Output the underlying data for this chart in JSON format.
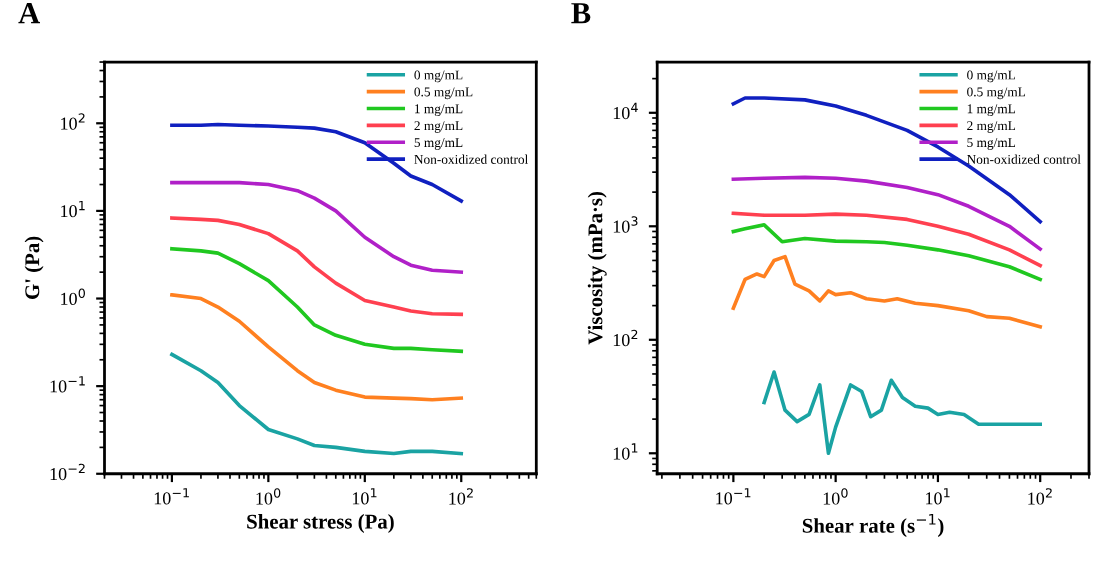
{
  "chart_data": [
    {
      "type": "line",
      "title": "A",
      "xlabel": "Shear stress (Pa)",
      "ylabel": "G' (Pa)",
      "log": "xy",
      "legend": "top right",
      "grid": false,
      "xlim": [
        0.02,
        600
      ],
      "ylim": [
        0.01,
        500
      ],
      "xticks": [
        {
          "value": 0.1,
          "label": "10$^{−1}$"
        },
        {
          "value": 1,
          "label": "10$^{0}$"
        },
        {
          "value": 10,
          "label": "10$^{1}$"
        },
        {
          "value": 100,
          "label": "10$^{2}$"
        }
      ],
      "yticks": [
        {
          "value": 0.01,
          "label": "10$^{−2}$"
        },
        {
          "value": 0.1,
          "label": "10$^{−1}$"
        },
        {
          "value": 1,
          "label": "10$^{0}$"
        },
        {
          "value": 10,
          "label": "10$^{1}$"
        },
        {
          "value": 100,
          "label": "10$^{2}$"
        }
      ],
      "x": [
        0.1,
        0.2,
        0.3,
        0.5,
        1,
        2,
        3,
        5,
        10,
        20,
        30,
        50,
        100
      ],
      "series": [
        {
          "name": "0 mg/mL",
          "color": "#1aa3a3",
          "values": [
            0.23,
            0.15,
            0.11,
            0.06,
            0.032,
            0.025,
            0.021,
            0.02,
            0.018,
            0.017,
            0.018,
            0.018,
            0.017
          ]
        },
        {
          "name": "0.5 mg/mL",
          "color": "#ff8020",
          "values": [
            1.1,
            1.0,
            0.8,
            0.55,
            0.28,
            0.15,
            0.11,
            0.09,
            0.075,
            0.073,
            0.072,
            0.07,
            0.073
          ]
        },
        {
          "name": "1 mg/mL",
          "color": "#20c820",
          "values": [
            3.7,
            3.5,
            3.3,
            2.5,
            1.6,
            0.8,
            0.5,
            0.38,
            0.3,
            0.27,
            0.27,
            0.26,
            0.25
          ]
        },
        {
          "name": "2 mg/mL",
          "color": "#ff4050",
          "values": [
            8.3,
            8.0,
            7.8,
            7,
            5.5,
            3.5,
            2.3,
            1.5,
            0.95,
            0.8,
            0.72,
            0.67,
            0.66
          ]
        },
        {
          "name": "5 mg/mL",
          "color": "#b020c8",
          "values": [
            21,
            21,
            21,
            21,
            20,
            17,
            14,
            10,
            5,
            3,
            2.4,
            2.1,
            2.0
          ]
        },
        {
          "name": "Non-oxidized control",
          "color": "#1020c0",
          "values": [
            95,
            95,
            97,
            95,
            93,
            90,
            88,
            80,
            60,
            35,
            25,
            20,
            13
          ]
        }
      ]
    },
    {
      "type": "line",
      "title": "B",
      "xlabel": "Shear rate (s$^{−1}$)",
      "ylabel": "Viscosity (mPa·s)",
      "log": "xy",
      "legend": "top right",
      "grid": false,
      "xlim": [
        0.018,
        300
      ],
      "ylim": [
        6.6,
        28000
      ],
      "xticks": [
        {
          "value": 0.1,
          "label": "10$^{−1}$"
        },
        {
          "value": 1,
          "label": "10$^{0}$"
        },
        {
          "value": 10,
          "label": "10$^{1}$"
        },
        {
          "value": 100,
          "label": "10$^{2}$"
        }
      ],
      "yticks": [
        {
          "value": 10,
          "label": "10$^{1}$"
        },
        {
          "value": 100,
          "label": "10$^{2}$"
        },
        {
          "value": 1000,
          "label": "10$^{3}$"
        },
        {
          "value": 10000,
          "label": "10$^{4}$"
        }
      ],
      "series": [
        {
          "name": "0 mg/mL",
          "color": "#1aa3a3",
          "x": [
            0.2,
            0.25,
            0.32,
            0.42,
            0.55,
            0.7,
            0.85,
            1.0,
            1.4,
            1.8,
            2.2,
            2.8,
            3.5,
            4.5,
            6,
            8,
            10,
            13,
            18,
            25,
            50,
            100
          ],
          "values": [
            28,
            52,
            24,
            19,
            22,
            40,
            10,
            17,
            40,
            35,
            21,
            24,
            44,
            31,
            26,
            25,
            22,
            23,
            22,
            18,
            18,
            18
          ]
        },
        {
          "name": "0.5 mg/mL",
          "color": "#ff8020",
          "x": [
            0.1,
            0.13,
            0.17,
            0.2,
            0.25,
            0.32,
            0.4,
            0.55,
            0.7,
            0.85,
            1.0,
            1.4,
            2,
            3,
            4,
            6,
            10,
            20,
            30,
            50,
            100
          ],
          "values": [
            190,
            340,
            380,
            360,
            500,
            540,
            310,
            270,
            220,
            270,
            250,
            260,
            230,
            220,
            230,
            210,
            200,
            180,
            160,
            155,
            130
          ]
        },
        {
          "name": "1 mg/mL",
          "color": "#20c820",
          "x": [
            0.1,
            0.13,
            0.2,
            0.3,
            0.5,
            1,
            2,
            3,
            5,
            10,
            20,
            50,
            100
          ],
          "values": [
            900,
            950,
            1030,
            730,
            780,
            740,
            730,
            720,
            680,
            620,
            550,
            440,
            340
          ]
        },
        {
          "name": "2 mg/mL",
          "color": "#ff4050",
          "x": [
            0.1,
            0.2,
            0.5,
            1,
            2,
            5,
            10,
            20,
            50,
            100
          ],
          "values": [
            1300,
            1250,
            1250,
            1280,
            1250,
            1150,
            1000,
            850,
            620,
            450
          ]
        },
        {
          "name": "5 mg/mL",
          "color": "#b020c8",
          "x": [
            0.1,
            0.2,
            0.5,
            1,
            2,
            5,
            10,
            20,
            50,
            100
          ],
          "values": [
            2600,
            2650,
            2700,
            2650,
            2500,
            2200,
            1900,
            1500,
            1000,
            630
          ]
        },
        {
          "name": "Non-oxidized control",
          "color": "#1020c0",
          "x": [
            0.1,
            0.13,
            0.2,
            0.5,
            1,
            2,
            5,
            10,
            20,
            50,
            100
          ],
          "values": [
            12000,
            13500,
            13500,
            13000,
            11500,
            9500,
            7000,
            5000,
            3400,
            1900,
            1100
          ]
        }
      ]
    }
  ]
}
